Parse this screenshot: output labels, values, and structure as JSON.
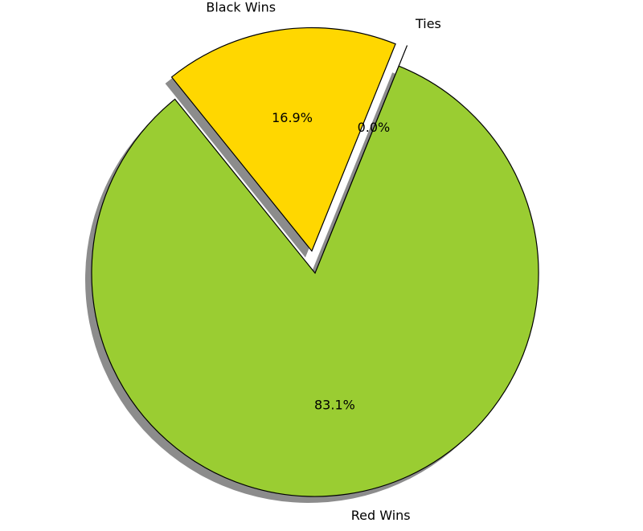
{
  "chart_data": {
    "type": "pie",
    "title": "",
    "slices": [
      {
        "label": "Ties",
        "value": 0.0,
        "pct_label": "0.0%",
        "color": "#4b4b4b",
        "exploded": true
      },
      {
        "label": "Black Wins",
        "value": 16.9,
        "pct_label": "16.9%",
        "color": "#ffd700",
        "exploded": true
      },
      {
        "label": "Red Wins",
        "value": 83.1,
        "pct_label": "83.1%",
        "color": "#9acd32",
        "exploded": false
      }
    ],
    "start_angle_deg": 68,
    "direction": "counterclockwise",
    "shadow": true,
    "edge_color": "#000000"
  }
}
